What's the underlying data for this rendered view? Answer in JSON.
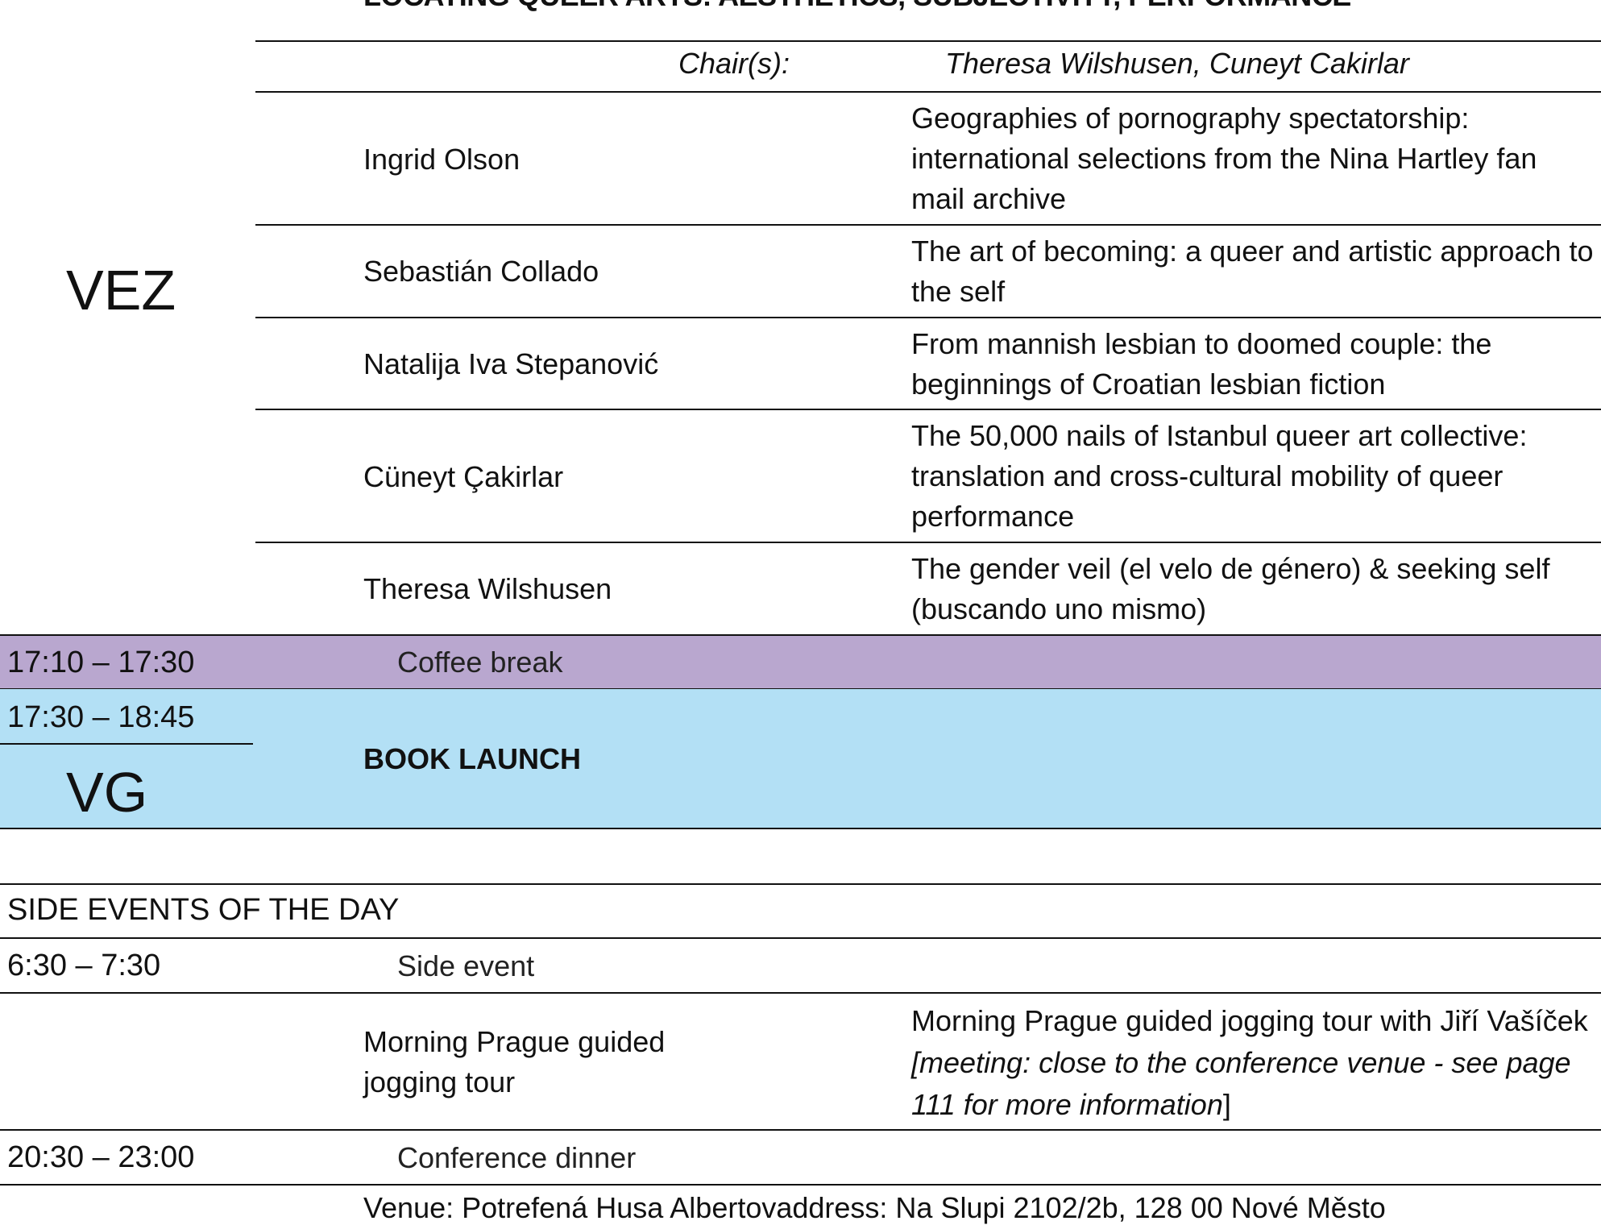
{
  "session": {
    "title": "LOCATING QUEER ARTS: AESTHETICS, SUBJECTIVITY, PERFORMANCE",
    "room": "VEZ",
    "chair_label": "Chair(s):",
    "chairs": "Theresa Wilshusen, Cuneyt Cakirlar",
    "papers": [
      {
        "speaker": "Ingrid Olson",
        "title": "Geographies of pornography spectatorship: international selections from the Nina Hartley fan mail archive"
      },
      {
        "speaker": "Sebastián Collado",
        "title": "The art of becoming: a queer and artistic approach to the self"
      },
      {
        "speaker": "Natalija Iva Stepanović",
        "title": "From mannish lesbian to doomed couple: the beginnings of Croatian lesbian fiction"
      },
      {
        "speaker": "Cüneyt Çakirlar",
        "title": "The 50,000 nails of Istanbul queer art collective: translation and cross-cultural mobility of queer performance"
      },
      {
        "speaker": "Theresa Wilshusen",
        "title": "The gender veil (el velo de género) & seeking self (buscando uno mismo)"
      }
    ]
  },
  "coffee": {
    "time": "17:10 – 17:30",
    "label": "Coffee break",
    "color": "#b9a7cf"
  },
  "book_launch": {
    "time": "17:30 – 18:45",
    "room": "VG",
    "label": "BOOK LAUNCH",
    "color": "#b3e0f5"
  },
  "side_events": {
    "heading": "SIDE EVENTS OF THE DAY",
    "rows": [
      {
        "time": "6:30 – 7:30",
        "label": "Side event"
      },
      {
        "name": "Morning Prague guided jogging tour",
        "desc_plain": "Morning Prague guided jogging tour with Jiří Vašíček ",
        "desc_italic": "[meeting: close to the conference venue - see page 111 for more information",
        "desc_end": "]"
      },
      {
        "time": "20:30 – 23:00",
        "label": "Conference dinner"
      },
      {
        "venue": "Venue: Potrefená Husa Albertovaddress: Na Slupi 2102/2b, 128 00 Nové Město"
      }
    ]
  }
}
